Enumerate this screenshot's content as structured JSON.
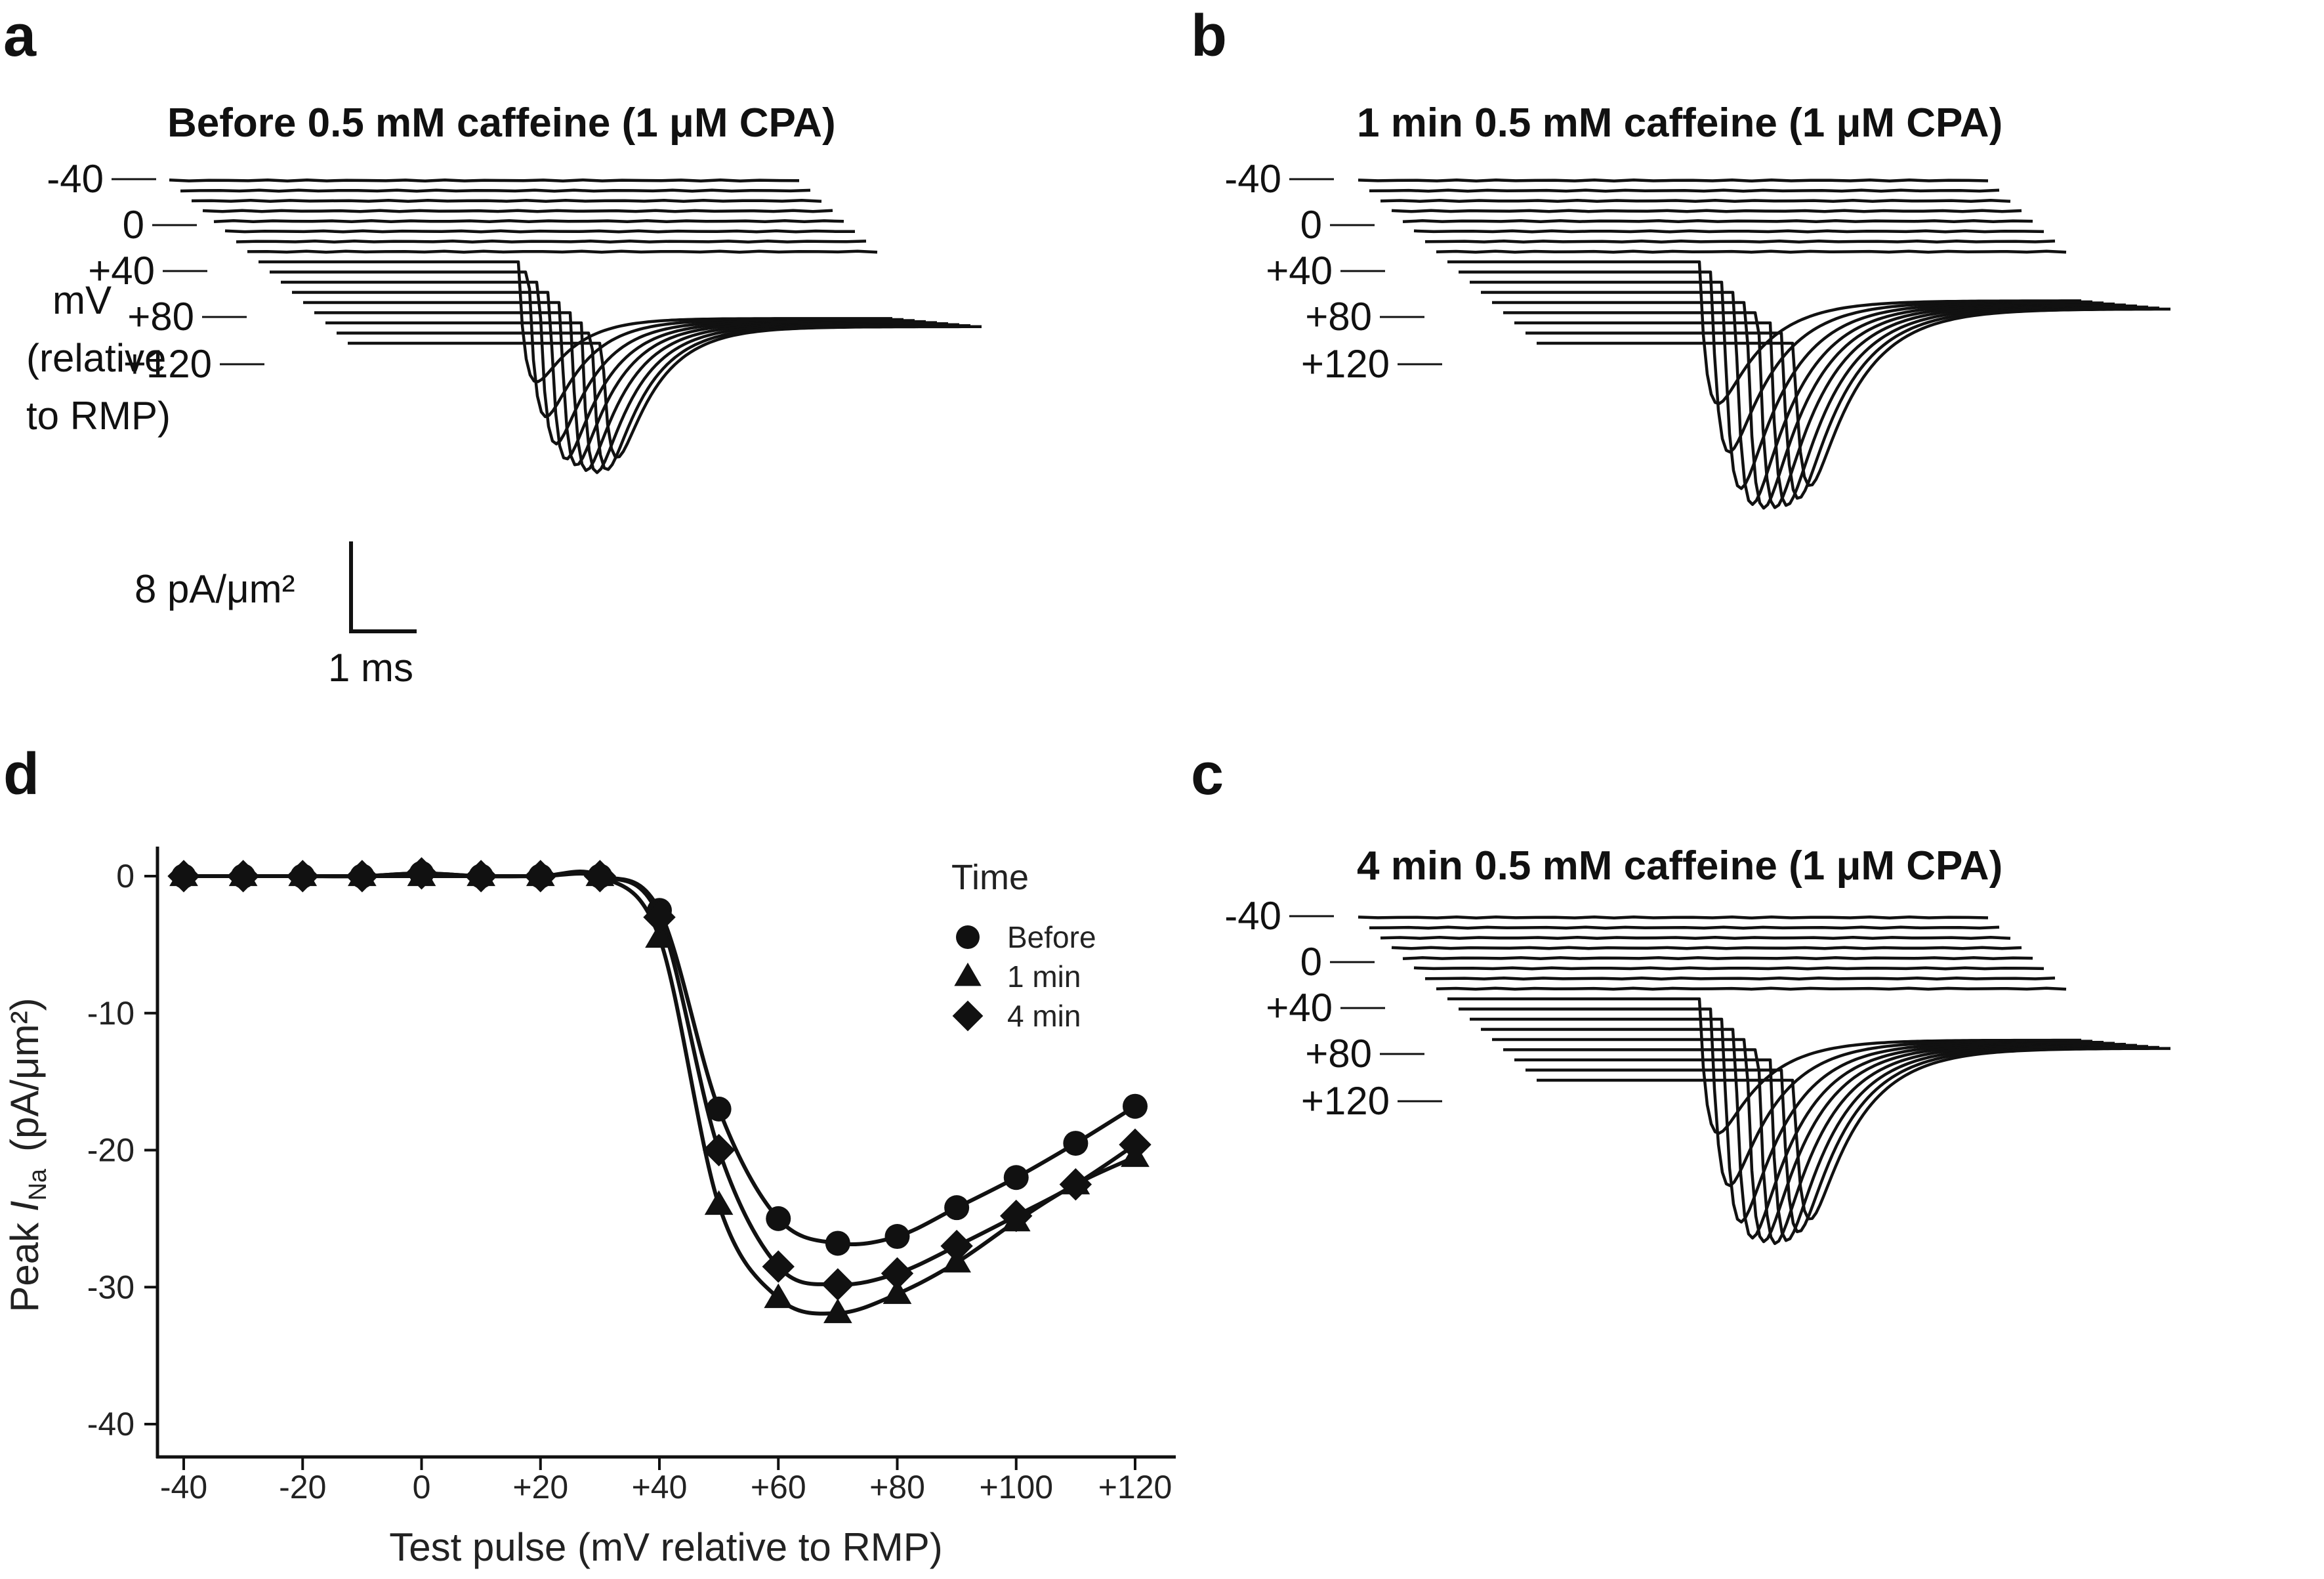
{
  "panels": {
    "a": {
      "letter": "a",
      "title": "Before 0.5 mM caffeine (1 μM CPA)"
    },
    "b": {
      "letter": "b",
      "title": "1 min 0.5 mM caffeine (1 μM CPA)"
    },
    "c": {
      "letter": "c",
      "title": "4 min 0.5 mM caffeine (1 μM CPA)"
    },
    "d": {
      "letter": "d"
    }
  },
  "voltage_labels": [
    "-40",
    "0",
    "+40",
    "+80",
    "+120"
  ],
  "mv_label": [
    "mV",
    "(relative",
    "to RMP)"
  ],
  "scale_bar": {
    "y_label": "8 pA/μm²",
    "x_label": "1 ms"
  },
  "chart_data": {
    "type": "scatter",
    "xlabel": "Test pulse (mV relative to RMP)",
    "ylabel_prefix": "Peak ",
    "ylabel_var": "I",
    "ylabel_sub": "Na",
    "ylabel_units": "(pA/μm²)",
    "xlim": [
      -44,
      124
    ],
    "ylim": [
      -41,
      2
    ],
    "x_ticks": [
      -40,
      -20,
      0,
      20,
      40,
      60,
      80,
      100,
      120
    ],
    "x_tick_labels": [
      "-40",
      "-20",
      "0",
      "+20",
      "+40",
      "+60",
      "+80",
      "+100",
      "+120"
    ],
    "y_ticks": [
      0,
      -10,
      -20,
      -30,
      -40
    ],
    "y_tick_labels": [
      "0",
      "-10",
      "-20",
      "-30",
      "-40"
    ],
    "x": [
      -40,
      -30,
      -20,
      -10,
      0,
      10,
      20,
      30,
      40,
      50,
      60,
      70,
      80,
      90,
      100,
      110,
      120
    ],
    "legend_title": "Time",
    "series": [
      {
        "name": "Before",
        "marker": "circle",
        "values": [
          0,
          0,
          0,
          0,
          0.2,
          0,
          0,
          0,
          -2.5,
          -17,
          -25,
          -26.8,
          -26.3,
          -24.2,
          -22,
          -19.5,
          -16.8
        ]
      },
      {
        "name": "1 min",
        "marker": "triangle",
        "values": [
          0,
          0,
          0,
          0,
          0,
          0,
          0,
          0,
          -4.5,
          -24,
          -30.8,
          -31.9,
          -30.5,
          -28.2,
          -25.2,
          -22.5,
          -20.5
        ]
      },
      {
        "name": "4 min",
        "marker": "diamond",
        "values": [
          0,
          0,
          0,
          0,
          0.2,
          0,
          0,
          0,
          -3,
          -20,
          -28.5,
          -29.8,
          -29,
          -27,
          -24.8,
          -22.5,
          -19.6
        ]
      }
    ]
  }
}
